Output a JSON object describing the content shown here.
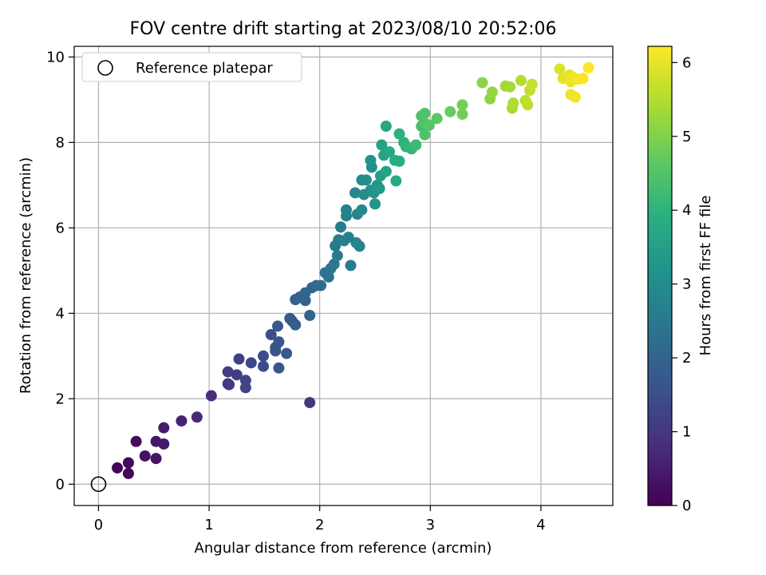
{
  "chart_data": {
    "type": "scatter",
    "title": "FOV centre drift starting at 2023/08/10 20:52:06",
    "xlabel": "Angular distance from reference (arcmin)",
    "ylabel": "Rotation from reference (arcmin)",
    "xlim": [
      -0.22,
      4.65
    ],
    "ylim": [
      -0.5,
      10.25
    ],
    "xticks": [
      0,
      1,
      2,
      3,
      4
    ],
    "yticks": [
      0,
      2,
      4,
      6,
      8,
      10
    ],
    "grid": true,
    "legend": {
      "position": "top-left",
      "label": "Reference platepar"
    },
    "reference_point": {
      "x": 0,
      "y": 0
    },
    "colorbar": {
      "label": "Hours from first FF file",
      "colormap": "viridis",
      "range": [
        0,
        6.22
      ],
      "ticks": [
        0,
        1,
        2,
        3,
        4,
        5,
        6
      ]
    },
    "points": [
      [
        0.17,
        0.38,
        0.05
      ],
      [
        0.27,
        0.25,
        0.1
      ],
      [
        0.27,
        0.5,
        0.15
      ],
      [
        0.34,
        1.0,
        0.2
      ],
      [
        0.42,
        0.66,
        0.3
      ],
      [
        0.52,
        0.6,
        0.35
      ],
      [
        0.52,
        1.0,
        0.4
      ],
      [
        0.59,
        0.94,
        0.45
      ],
      [
        0.59,
        1.32,
        0.5
      ],
      [
        0.75,
        1.48,
        0.6
      ],
      [
        0.89,
        1.57,
        0.7
      ],
      [
        1.02,
        2.07,
        0.85
      ],
      [
        1.17,
        2.35,
        1.0
      ],
      [
        1.18,
        2.33,
        1.05
      ],
      [
        1.17,
        2.63,
        1.1
      ],
      [
        1.25,
        2.56,
        1.15
      ],
      [
        1.27,
        2.93,
        1.2
      ],
      [
        1.33,
        2.26,
        1.25
      ],
      [
        1.33,
        2.43,
        1.3
      ],
      [
        1.38,
        2.84,
        1.35
      ],
      [
        1.49,
        2.76,
        1.4
      ],
      [
        1.49,
        3.0,
        1.45
      ],
      [
        1.56,
        3.5,
        1.5
      ],
      [
        1.6,
        3.12,
        1.55
      ],
      [
        1.6,
        3.2,
        1.6
      ],
      [
        1.63,
        3.33,
        1.62
      ],
      [
        1.63,
        2.72,
        1.65
      ],
      [
        1.62,
        3.7,
        1.7
      ],
      [
        1.7,
        3.06,
        1.72
      ],
      [
        1.73,
        3.88,
        1.75
      ],
      [
        1.75,
        3.82,
        1.8
      ],
      [
        1.78,
        3.73,
        1.85
      ],
      [
        1.78,
        4.32,
        1.9
      ],
      [
        1.82,
        4.38,
        1.95
      ],
      [
        1.87,
        4.3,
        2.0
      ],
      [
        1.91,
        3.95,
        2.05
      ],
      [
        1.87,
        4.48,
        2.05
      ],
      [
        1.91,
        1.91,
        1.0
      ],
      [
        1.93,
        4.6,
        2.1
      ],
      [
        1.97,
        4.65,
        2.15
      ],
      [
        2.01,
        4.65,
        2.2
      ],
      [
        2.05,
        4.95,
        2.3
      ],
      [
        2.08,
        4.85,
        2.35
      ],
      [
        2.1,
        5.05,
        2.4
      ],
      [
        2.13,
        5.15,
        2.45
      ],
      [
        2.14,
        5.58,
        2.5
      ],
      [
        2.17,
        5.72,
        2.55
      ],
      [
        2.16,
        5.35,
        2.55
      ],
      [
        2.19,
        6.02,
        2.6
      ],
      [
        2.22,
        5.7,
        2.65
      ],
      [
        2.24,
        6.28,
        2.7
      ],
      [
        2.24,
        6.42,
        2.75
      ],
      [
        2.26,
        5.78,
        2.7
      ],
      [
        2.28,
        5.12,
        2.6
      ],
      [
        2.33,
        5.65,
        2.75
      ],
      [
        2.34,
        6.32,
        2.8
      ],
      [
        2.32,
        6.82,
        2.85
      ],
      [
        2.36,
        5.57,
        2.8
      ],
      [
        2.38,
        6.42,
        2.9
      ],
      [
        2.38,
        7.12,
        2.95
      ],
      [
        2.4,
        6.78,
        3.0
      ],
      [
        2.42,
        7.12,
        3.05
      ],
      [
        2.46,
        7.58,
        3.1
      ],
      [
        2.47,
        7.42,
        3.15
      ],
      [
        2.46,
        6.88,
        3.15
      ],
      [
        2.49,
        6.82,
        3.2
      ],
      [
        2.5,
        6.56,
        3.25
      ],
      [
        2.52,
        7.0,
        3.3
      ],
      [
        2.54,
        6.92,
        3.35
      ],
      [
        2.55,
        7.22,
        3.4
      ],
      [
        2.56,
        7.94,
        3.55
      ],
      [
        2.58,
        7.7,
        3.6
      ],
      [
        2.6,
        7.32,
        3.65
      ],
      [
        2.6,
        8.38,
        3.7
      ],
      [
        2.63,
        7.78,
        3.75
      ],
      [
        2.68,
        7.58,
        3.85
      ],
      [
        2.69,
        7.1,
        3.8
      ],
      [
        2.72,
        7.56,
        3.9
      ],
      [
        2.72,
        8.2,
        3.95
      ],
      [
        2.76,
        8.0,
        4.0
      ],
      [
        2.78,
        7.9,
        4.05
      ],
      [
        2.83,
        7.85,
        4.1
      ],
      [
        2.87,
        7.94,
        4.2
      ],
      [
        2.92,
        8.38,
        4.35
      ],
      [
        2.92,
        8.62,
        4.4
      ],
      [
        2.95,
        8.68,
        4.45
      ],
      [
        2.95,
        8.18,
        4.45
      ],
      [
        2.96,
        8.44,
        4.5
      ],
      [
        2.99,
        8.4,
        4.55
      ],
      [
        3.06,
        8.56,
        4.65
      ],
      [
        3.18,
        8.72,
        4.75
      ],
      [
        3.29,
        8.66,
        4.85
      ],
      [
        3.29,
        8.88,
        4.9
      ],
      [
        3.47,
        9.4,
        5.1
      ],
      [
        3.54,
        9.02,
        5.15
      ],
      [
        3.56,
        9.18,
        5.2
      ],
      [
        3.68,
        9.32,
        5.3
      ],
      [
        3.72,
        9.3,
        5.35
      ],
      [
        3.74,
        8.8,
        5.4
      ],
      [
        3.75,
        8.92,
        5.45
      ],
      [
        3.82,
        9.45,
        5.5
      ],
      [
        3.86,
        8.98,
        5.55
      ],
      [
        3.88,
        8.88,
        5.6
      ],
      [
        3.9,
        9.22,
        5.65
      ],
      [
        3.92,
        9.36,
        5.7
      ],
      [
        4.17,
        9.72,
        5.9
      ],
      [
        4.2,
        9.5,
        5.95
      ],
      [
        4.26,
        9.58,
        6.0
      ],
      [
        4.27,
        9.42,
        6.05
      ],
      [
        4.27,
        9.12,
        6.05
      ],
      [
        4.29,
        9.52,
        6.1
      ],
      [
        4.31,
        9.06,
        6.1
      ],
      [
        4.34,
        9.48,
        6.15
      ],
      [
        4.38,
        9.5,
        6.15
      ],
      [
        4.43,
        9.75,
        6.2
      ]
    ]
  }
}
